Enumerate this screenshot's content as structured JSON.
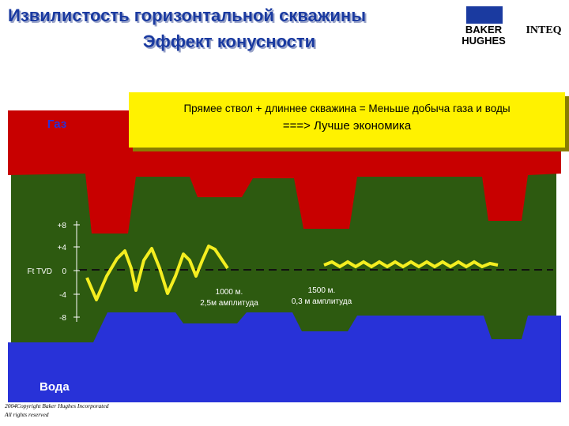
{
  "header": {
    "title_lines": [
      "Извилистость горизонтальной скважины",
      "Эффект конусности"
    ],
    "logo": {
      "company": [
        "BAKER",
        "HUGHES"
      ],
      "division": "INTEQ"
    }
  },
  "callout": {
    "lines": [
      "Прямее ствол + длиннее скважина = Меньше добыча газа и воды",
      "===> Лучше экономика"
    ]
  },
  "zones": {
    "gas": "Газ",
    "water": "Вода"
  },
  "axis": {
    "label": "Ft TVD",
    "ticks": [
      "+8",
      "+4",
      "0",
      "-4",
      "-8"
    ]
  },
  "annotations": [
    {
      "lines": [
        "1000 м.",
        "2,5м амплитуда"
      ]
    },
    {
      "lines": [
        "1500 м.",
        "0,3 м амплитуда"
      ]
    }
  ],
  "footer": {
    "lines": [
      "2004Copyright Baker Hughes Incorporated",
      "All rights reserved"
    ]
  }
}
